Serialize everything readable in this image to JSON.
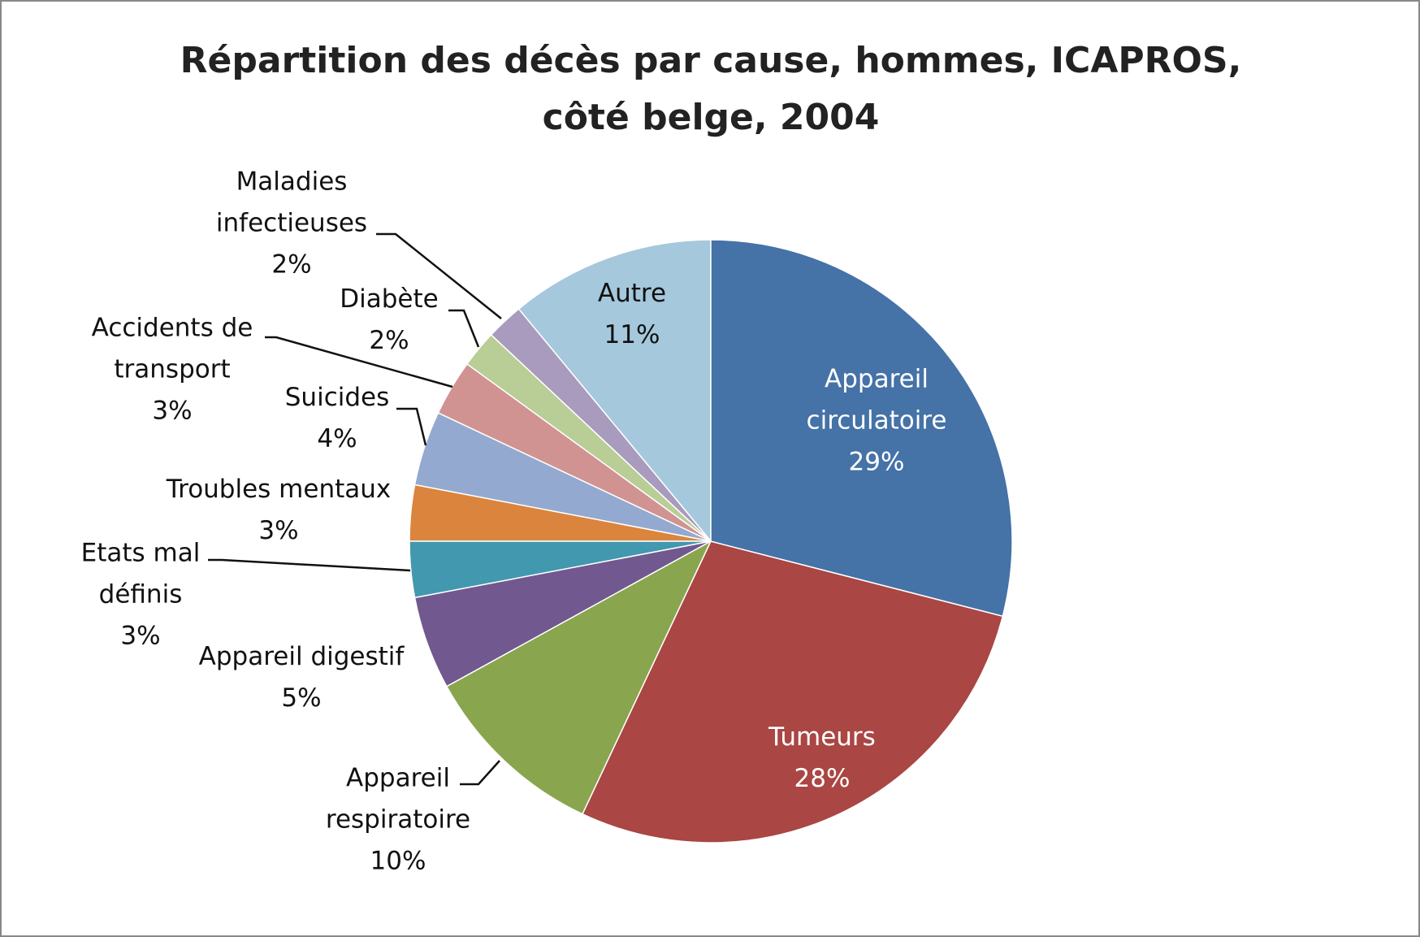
{
  "chart_data": {
    "type": "pie",
    "title": "Répartition des décès par cause, hommes, ICAPROS, côté belge, 2004",
    "categories": [
      "Appareil circulatoire",
      "Tumeurs",
      "Appareil respiratoire",
      "Appareil digestif",
      "Etats mal définis",
      "Troubles mentaux",
      "Suicides",
      "Accidents de transport",
      "Diabète",
      "Maladies infectieuses",
      "Autre"
    ],
    "values": [
      29,
      28,
      10,
      5,
      3,
      3,
      4,
      3,
      2,
      2,
      11
    ],
    "value_labels": [
      "29%",
      "28%",
      "10%",
      "5%",
      "3%",
      "3%",
      "4%",
      "3%",
      "2%",
      "2%",
      "11%"
    ],
    "colors": [
      "#4572a7",
      "#aa4643",
      "#89a54e",
      "#71588f",
      "#4198af",
      "#db843d",
      "#93a9cf",
      "#d19392",
      "#b9cd96",
      "#a99bbd",
      "#a5c8dc"
    ]
  }
}
